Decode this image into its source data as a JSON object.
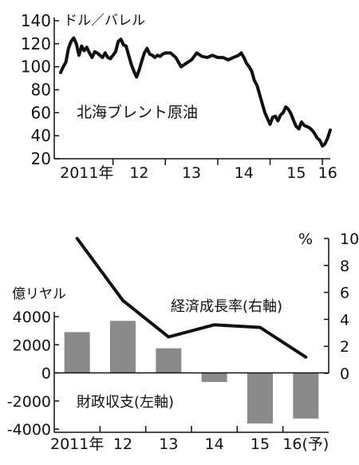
{
  "chart_data": [
    {
      "type": "line",
      "unit_label": "ドル／バレル",
      "series_label": "北海ブレント原油",
      "ylim": [
        20,
        140
      ],
      "yticks": [
        "140",
        "120",
        "100",
        "80",
        "60",
        "40",
        "20"
      ],
      "xlim": [
        2011.0,
        2016.15
      ],
      "xtick_labels": [
        "2011年",
        "12",
        "13",
        "14",
        "15",
        "16"
      ],
      "grid": false,
      "series": [
        {
          "x": [
            2011.0,
            2011.05,
            2011.1,
            2011.15,
            2011.2,
            2011.25,
            2011.3,
            2011.35,
            2011.4,
            2011.45,
            2011.5,
            2011.55,
            2011.6,
            2011.65,
            2011.7,
            2011.75,
            2011.8,
            2011.85,
            2011.9,
            2011.95,
            2012.0,
            2012.05,
            2012.1,
            2012.15,
            2012.2,
            2012.25,
            2012.3,
            2012.35,
            2012.4,
            2012.45,
            2012.5,
            2012.55,
            2012.6,
            2012.65,
            2012.7,
            2012.75,
            2012.8,
            2012.85,
            2012.9,
            2012.95,
            2013.0,
            2013.1,
            2013.2,
            2013.3,
            2013.4,
            2013.5,
            2013.6,
            2013.7,
            2013.8,
            2013.9,
            2014.0,
            2014.1,
            2014.2,
            2014.3,
            2014.4,
            2014.45,
            2014.5,
            2014.55,
            2014.6,
            2014.65,
            2014.7,
            2014.75,
            2014.8,
            2014.85,
            2014.9,
            2014.95,
            2015.0,
            2015.05,
            2015.1,
            2015.15,
            2015.2,
            2015.25,
            2015.3,
            2015.35,
            2015.4,
            2015.45,
            2015.5,
            2015.55,
            2015.6,
            2015.65,
            2015.7,
            2015.75,
            2015.8,
            2015.85,
            2015.9,
            2015.95,
            2016.0,
            2016.05,
            2016.1,
            2016.15
          ],
          "y": [
            95,
            100,
            104,
            116,
            122,
            125,
            120,
            110,
            118,
            114,
            117,
            112,
            108,
            113,
            112,
            110,
            108,
            112,
            108,
            107,
            110,
            113,
            122,
            124,
            119,
            118,
            110,
            102,
            96,
            91,
            97,
            105,
            112,
            116,
            111,
            110,
            108,
            110,
            109,
            111,
            112,
            112,
            108,
            100,
            103,
            106,
            112,
            109,
            108,
            110,
            108,
            108,
            106,
            108,
            110,
            112,
            108,
            103,
            100,
            96,
            88,
            84,
            76,
            68,
            60,
            55,
            50,
            56,
            57,
            53,
            58,
            60,
            65,
            63,
            59,
            53,
            48,
            46,
            52,
            49,
            48,
            47,
            45,
            42,
            38,
            36,
            31,
            33,
            38,
            45
          ]
        }
      ]
    },
    {
      "type": "bar+line",
      "y_left_label": "億リヤル",
      "y_left_lim": [
        -4000,
        4000
      ],
      "y_left_ticks": [
        "4000",
        "2000",
        "0",
        "-2000",
        "-4000"
      ],
      "y_right_label": "%",
      "y_right_lim": [
        0,
        10
      ],
      "y_right_ticks": [
        "10",
        "8",
        "6",
        "4",
        "2",
        "0"
      ],
      "categories": [
        "2011年",
        "12",
        "13",
        "14",
        "15",
        "16(予)"
      ],
      "bar_series_label": "財政収支(左軸)",
      "bar_values": [
        2900,
        3700,
        1750,
        -650,
        -3600,
        -3250
      ],
      "line_series_label": "経済成長率(右軸)",
      "line_values": [
        10.0,
        5.4,
        2.7,
        3.6,
        3.4,
        1.2
      ],
      "bar_color": "#8a8a8a",
      "line_color": "#111111",
      "grid": false
    }
  ]
}
